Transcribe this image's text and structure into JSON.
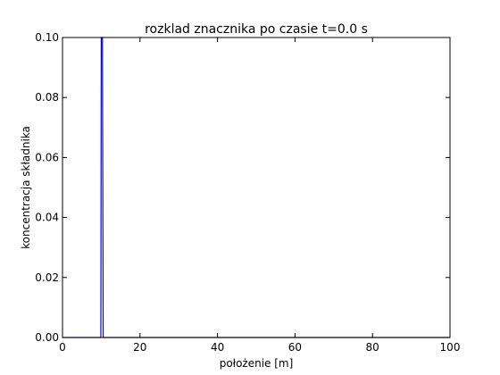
{
  "chart_data": {
    "type": "line",
    "title": "rozklad znacznika po czasie t=0.0 s",
    "xlabel": "położenie [m]",
    "ylabel": "koncentracja składnika",
    "xlim": [
      0,
      100
    ],
    "ylim": [
      0,
      0.1
    ],
    "xticks": [
      0,
      20,
      40,
      60,
      80,
      100
    ],
    "xtick_labels": [
      "0",
      "20",
      "40",
      "60",
      "80",
      "100"
    ],
    "yticks": [
      0,
      0.02,
      0.04,
      0.06,
      0.08,
      0.1
    ],
    "ytick_labels": [
      "0.00",
      "0.02",
      "0.04",
      "0.06",
      "0.08",
      "0.10"
    ],
    "grid": false,
    "series": [
      {
        "color": "#0000ff",
        "x": [
          0,
          9.9,
          10.0,
          10.3,
          10.5,
          100
        ],
        "y": [
          0,
          0,
          0.1,
          0.1,
          0,
          0
        ]
      }
    ]
  }
}
